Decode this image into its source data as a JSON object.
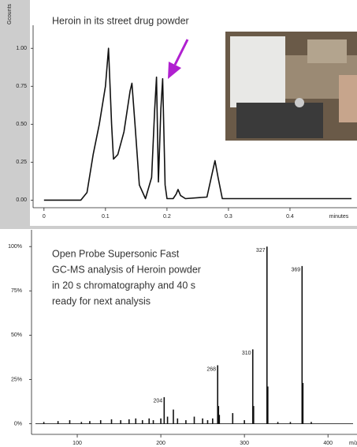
{
  "chart_data": [
    {
      "type": "line",
      "title": "Heroin in its street drug powder",
      "ylabel": "Gcounts",
      "xlabel": "minutes",
      "color": "#111111",
      "x": [
        0,
        0.06,
        0.07,
        0.08,
        0.09,
        0.1,
        0.105,
        0.11,
        0.113,
        0.12,
        0.13,
        0.14,
        0.143,
        0.148,
        0.155,
        0.165,
        0.175,
        0.18,
        0.183,
        0.186,
        0.19,
        0.193,
        0.197,
        0.2,
        0.21,
        0.215,
        0.218,
        0.222,
        0.23,
        0.265,
        0.272,
        0.278,
        0.283,
        0.29,
        0.5
      ],
      "values": [
        0,
        0,
        0.05,
        0.3,
        0.5,
        0.75,
        1.0,
        0.5,
        0.27,
        0.3,
        0.45,
        0.72,
        0.77,
        0.5,
        0.1,
        0.01,
        0.15,
        0.6,
        0.81,
        0.12,
        0.6,
        0.8,
        0.1,
        0.01,
        0.01,
        0.04,
        0.07,
        0.03,
        0.01,
        0.02,
        0.15,
        0.26,
        0.15,
        0.01,
        0.01
      ],
      "xlim": [
        -0.01,
        0.5
      ],
      "xticks": [
        0,
        0.1,
        0.2,
        0.3,
        0.4
      ],
      "ylim": [
        -0.05,
        1.1
      ],
      "yticks": [
        {
          "value": 0,
          "label": "0.00"
        },
        {
          "value": 0.25,
          "label": "0.25"
        },
        {
          "value": 0.5,
          "label": "0.50"
        },
        {
          "value": 0.75,
          "label": "0.75"
        },
        {
          "value": 1.0,
          "label": "1.00"
        }
      ]
    },
    {
      "type": "stem",
      "annotation": [
        "Open Probe Supersonic Fast",
        "GC-MS analysis of Heroin powder",
        "in 20 s chromatography and 40 s",
        "ready for next analysis"
      ],
      "xlabel": "m/z",
      "color": "#111111",
      "x": [
        60,
        77,
        91,
        105,
        115,
        128,
        141,
        152,
        162,
        170,
        178,
        186,
        191,
        200,
        204,
        208,
        215,
        220,
        230,
        240,
        250,
        256,
        262,
        268,
        269,
        270,
        286,
        300,
        310,
        311,
        327,
        328,
        340,
        355,
        369,
        370,
        380
      ],
      "values": [
        1,
        1.5,
        2,
        1,
        1.5,
        2,
        2.5,
        2,
        2.5,
        3,
        2,
        3,
        2,
        3,
        15,
        4,
        8,
        3,
        2,
        4,
        3,
        2,
        3,
        33,
        10,
        5,
        6,
        2,
        42,
        10,
        100,
        21,
        1,
        1,
        89,
        23,
        1
      ],
      "peak_labels": [
        204,
        268,
        310,
        327,
        369
      ],
      "xlim": [
        50,
        430
      ],
      "xticks": [
        100,
        200,
        300,
        400
      ],
      "ylim": [
        -6,
        105
      ],
      "yticks": [
        {
          "value": 0,
          "label": "0%"
        },
        {
          "value": 25,
          "label": "25%"
        },
        {
          "value": 50,
          "label": "50%"
        },
        {
          "value": 75,
          "label": "75%"
        },
        {
          "value": 100,
          "label": "100%"
        }
      ]
    }
  ]
}
